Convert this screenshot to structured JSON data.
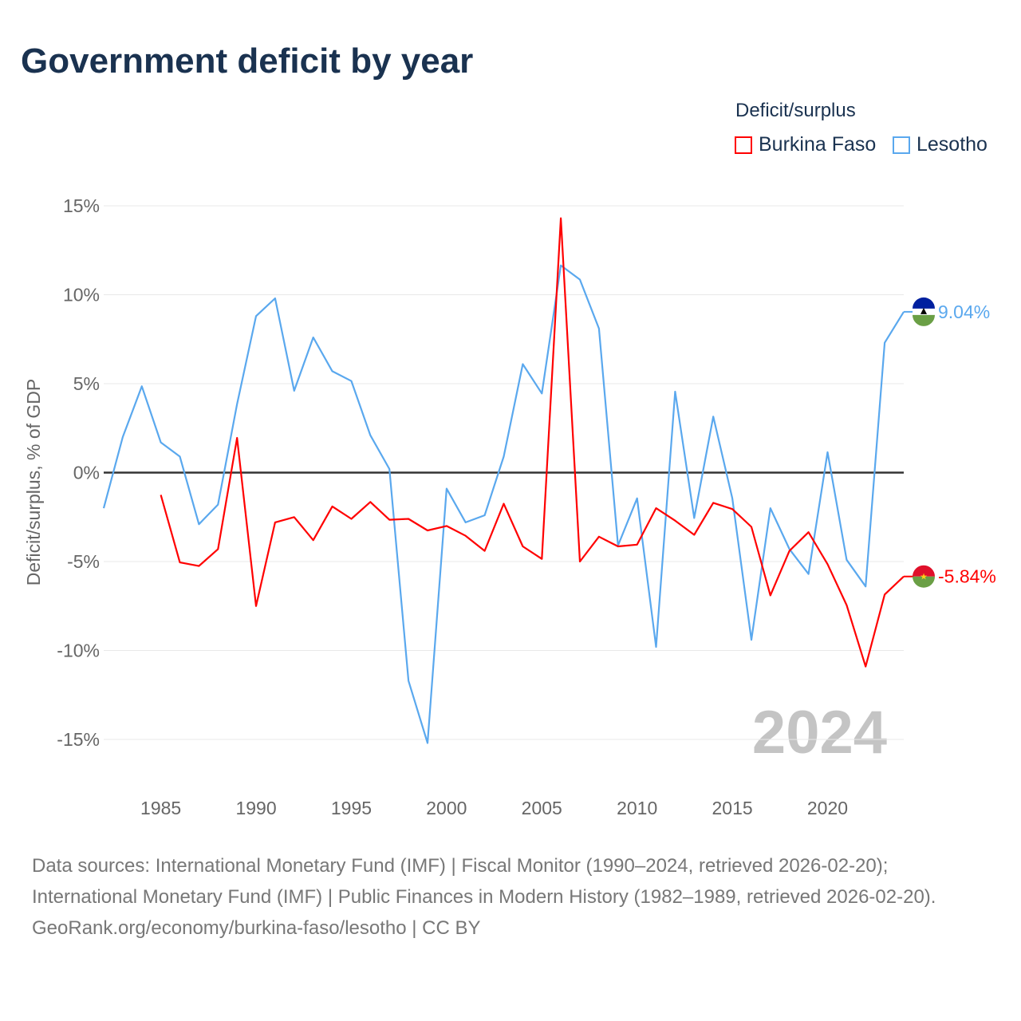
{
  "title": "Government deficit by year",
  "legend": {
    "title": "Deficit/surplus",
    "items": [
      {
        "label": "Burkina Faso",
        "color": "#ff0000"
      },
      {
        "label": "Lesotho",
        "color": "#5aa8ee"
      }
    ]
  },
  "sources": {
    "line1": "Data sources: International Monetary Fund (IMF) | Fiscal Monitor (1990–2024, retrieved 2026-02-20); International Monetary Fund (IMF) | Public Finances in Modern History (1982–1989, retrieved 2026-02-20).",
    "line2": "GeoRank.org/economy/burkina-faso/lesotho | CC BY"
  },
  "chart_data": {
    "type": "line",
    "title": "Government deficit by year",
    "ylabel": "Deficit/surplus, % of GDP",
    "xlabel": "",
    "xlim": [
      1982,
      2024
    ],
    "ylim": [
      -15,
      15
    ],
    "yticks": [
      15,
      10,
      5,
      0,
      -5,
      -10,
      -15
    ],
    "ytick_labels": [
      "15%",
      "10%",
      "5%",
      "0%",
      "-5%",
      "-10%",
      "-15%"
    ],
    "xticks": [
      1985,
      1990,
      1995,
      2000,
      2005,
      2010,
      2015,
      2020
    ],
    "xtick_labels": [
      "1985",
      "1990",
      "1995",
      "2000",
      "2005",
      "2010",
      "2015",
      "2020"
    ],
    "year_watermark": "2024",
    "grid": true,
    "legend_position": "top-right",
    "series": [
      {
        "name": "Burkina Faso",
        "color": "#ff0000",
        "end_label": "-5.84%",
        "start_year": 1985,
        "values": [
          -1.25,
          -5.05,
          -5.25,
          -4.3,
          1.95,
          -7.5,
          -2.8,
          -2.5,
          -3.8,
          -1.9,
          -2.6,
          -1.65,
          -2.65,
          -2.6,
          -3.25,
          -3.0,
          -3.55,
          -4.4,
          -1.75,
          -4.15,
          -4.85,
          14.3,
          -5.0,
          -3.6,
          -4.15,
          -4.05,
          -2.0,
          -2.7,
          -3.5,
          -1.7,
          -2.05,
          -3.05,
          -6.9,
          -4.4,
          -3.35,
          -5.15,
          -7.45,
          -10.9,
          -6.85,
          -5.84
        ]
      },
      {
        "name": "Lesotho",
        "color": "#5aa8ee",
        "end_label": "9.04%",
        "start_year": 1982,
        "values": [
          -2.0,
          2.0,
          4.85,
          1.7,
          0.9,
          -2.9,
          -1.8,
          3.85,
          8.8,
          9.8,
          4.6,
          7.6,
          5.7,
          5.15,
          2.1,
          0.2,
          -11.7,
          -15.2,
          -0.9,
          -2.8,
          -2.4,
          0.9,
          6.1,
          4.45,
          11.65,
          10.85,
          8.1,
          -4.1,
          -1.45,
          -9.8,
          4.55,
          -2.55,
          3.15,
          -1.45,
          -9.4,
          -2.0,
          -4.3,
          -5.7,
          1.15,
          -4.9,
          -6.4,
          7.3,
          9.04
        ]
      }
    ]
  }
}
